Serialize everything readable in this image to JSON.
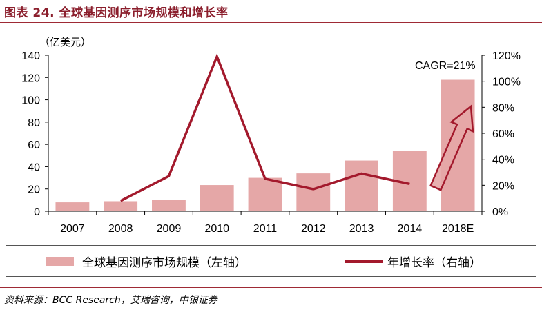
{
  "figure": {
    "title": "图表 24. 全球基因测序市场规模和增长率",
    "source": "资料来源：BCC Research，艾瑞咨询，中银证券"
  },
  "chart_data": {
    "type": "bar",
    "categories": [
      "2007",
      "2008",
      "2009",
      "2010",
      "2011",
      "2012",
      "2013",
      "2014",
      "2018E"
    ],
    "series": [
      {
        "name": "全球基因测序市场规模（左轴）",
        "type": "bar",
        "axis": "left",
        "color": "#E5A7A7",
        "values": [
          8,
          9,
          10.5,
          23.5,
          30,
          34,
          45.5,
          54.5,
          118
        ]
      },
      {
        "name": "年增长率（右轴）",
        "type": "line",
        "axis": "right",
        "color": "#A3192C",
        "values": [
          null,
          8,
          27,
          119,
          25,
          17,
          29,
          21,
          null
        ]
      }
    ],
    "left_axis": {
      "unit_label": "（亿美元）",
      "ylim": [
        0,
        140
      ],
      "ticks": [
        "0",
        "20",
        "40",
        "60",
        "80",
        "100",
        "120",
        "140"
      ]
    },
    "right_axis": {
      "ylim": [
        0,
        120
      ],
      "ticks": [
        "0%",
        "20%",
        "40%",
        "60%",
        "80%",
        "100%",
        "120%"
      ]
    },
    "annotation": "CAGR=21%",
    "arrow_color": "#E5A7A7",
    "arrow_border": "#A3192C",
    "grid": false,
    "legend_position": "bottom"
  }
}
